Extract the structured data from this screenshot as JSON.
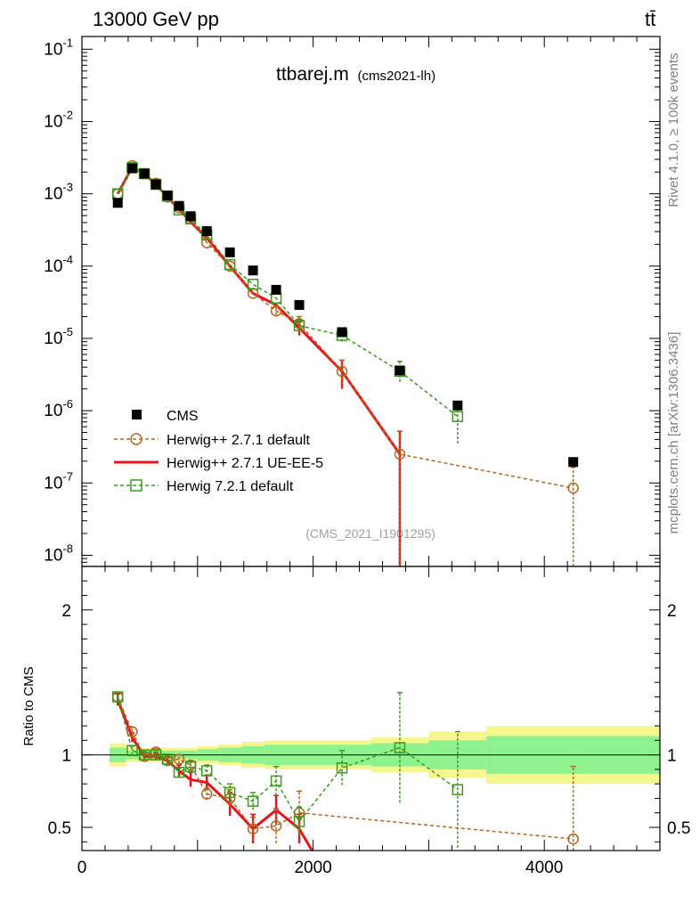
{
  "header": {
    "left_title": "13000 GeV pp",
    "right_title": "tt̄"
  },
  "plot_title": {
    "main": "ttbarej.m",
    "sub": "(cms2021-lh)"
  },
  "side_label_top": "Rivet 4.1.0, ≥ 100k events",
  "side_label_bottom": "mcplots.cern.ch [arXiv:1306.3436]",
  "watermark": "(CMS_2021_I1901295)",
  "ratio_ylabel": "Ratio to CMS",
  "colors": {
    "cms": "#000000",
    "h271": "#b5651d",
    "ueee5": "#e8141b",
    "h721": "#3a9a1a",
    "band_inner": "#8ef28e",
    "band_outer": "#f6f68e"
  },
  "chart_data": [
    {
      "type": "scatter",
      "panel": "main",
      "yscale": "log",
      "xlim": [
        0,
        5000
      ],
      "ylim": [
        7e-09,
        0.15
      ],
      "ytick_labels": [
        "10^-8",
        "10^-7",
        "10^-6",
        "10^-5",
        "10^-4",
        "10^-3",
        "10^-2",
        "10^-1"
      ],
      "legend": [
        {
          "key": "cms",
          "label": "CMS"
        },
        {
          "key": "h271",
          "label": "Herwig++ 2.7.1 default"
        },
        {
          "key": "ueee5",
          "label": "Herwig++ 2.7.1 UE-EE-5"
        },
        {
          "key": "h721",
          "label": "Herwig 7.2.1 default"
        }
      ],
      "series": [
        {
          "name": "CMS",
          "key": "cms",
          "style": "square",
          "x": [
            310,
            435,
            540,
            640,
            740,
            840,
            940,
            1080,
            1280,
            1480,
            1680,
            1880,
            2250,
            2750,
            3250,
            4250
          ],
          "y": [
            0.00075,
            0.00225,
            0.0019,
            0.00135,
            0.00095,
            0.00068,
            0.00049,
            0.000305,
            0.000155,
            8.7e-05,
            4.7e-05,
            2.9e-05,
            1.22e-05,
            3.6e-06,
            1.18e-06,
            1.95e-07
          ]
        },
        {
          "name": "Herwig++ 2.7.1 default",
          "key": "h271",
          "style": "circle-dashed",
          "x": [
            310,
            435,
            540,
            640,
            740,
            840,
            940,
            1080,
            1280,
            1480,
            1680,
            1880,
            2250,
            2750,
            4250
          ],
          "y": [
            0.001,
            0.00245,
            0.0019,
            0.0014,
            0.0009,
            0.00064,
            0.00045,
            0.00021,
            0.0001,
            4.2e-05,
            2.4e-05,
            1.6e-05,
            3.5e-06,
            2.5e-07,
            8.5e-08
          ],
          "yerr_lo": [
            0,
            0,
            0,
            0,
            0,
            0,
            0,
            0,
            0,
            0,
            3e-06,
            4e-06,
            1.5e-06,
            2.5e-07,
            8.5e-08
          ],
          "yerr_hi": [
            0,
            0,
            0,
            0,
            0,
            0,
            0,
            0,
            0,
            0,
            3e-06,
            4e-06,
            1.5e-06,
            2.7e-07,
            8e-08
          ]
        },
        {
          "name": "Herwig++ 2.7.1 UE-EE-5",
          "key": "ueee5",
          "style": "line-solid",
          "x": [
            310,
            435,
            540,
            640,
            740,
            840,
            940,
            1080,
            1280,
            1480,
            1680,
            1880,
            2250,
            2750
          ],
          "y": [
            0.001,
            0.00235,
            0.0019,
            0.00135,
            0.0009,
            0.00061,
            0.00041,
            0.000245,
            0.0001,
            4.2e-05,
            2.9e-05,
            1.4e-05,
            3.5e-06,
            2.5e-07
          ],
          "yerr_lo": [
            0,
            0,
            0,
            0,
            0,
            0,
            0,
            0,
            0,
            0,
            0,
            3e-06,
            1.5e-06,
            2.5e-07
          ],
          "yerr_hi": [
            0,
            0,
            0,
            0,
            0,
            0,
            0,
            0,
            0,
            0,
            0,
            3e-06,
            1.5e-06,
            2.7e-07
          ]
        },
        {
          "name": "Herwig 7.2.1 default",
          "key": "h721",
          "style": "square-dashed",
          "x": [
            310,
            435,
            540,
            640,
            740,
            840,
            940,
            1080,
            1280,
            1480,
            1680,
            1880,
            2250,
            2750,
            3250
          ],
          "y": [
            0.001,
            0.0023,
            0.0019,
            0.00135,
            0.00093,
            0.0006,
            0.00045,
            0.00027,
            0.000105,
            5.6e-05,
            3.6e-05,
            1.5e-05,
            1.1e-05,
            3.5e-06,
            8.3e-07
          ],
          "yerr_lo": [
            0,
            0,
            0,
            0,
            0,
            0,
            0,
            0,
            0,
            0,
            0,
            3e-06,
            2e-06,
            1e-06,
            4.8e-07
          ],
          "yerr_hi": [
            0,
            0,
            0,
            0,
            0,
            0,
            0,
            0,
            0,
            0,
            0,
            3e-06,
            2e-06,
            1.3e-06,
            4e-07
          ]
        }
      ]
    },
    {
      "type": "scatter",
      "panel": "ratio",
      "ylabel": "Ratio to CMS",
      "xlim": [
        0,
        5000
      ],
      "ylim": [
        0.34,
        2.3
      ],
      "ytick_labels": [
        "0.5",
        "1",
        "2"
      ],
      "xtick_labels": [
        "0",
        "2000",
        "4000"
      ],
      "bands": {
        "x_edges": [
          240,
          380,
          490,
          590,
          690,
          790,
          890,
          1000,
          1180,
          1380,
          1580,
          1780,
          1980,
          2500,
          3000,
          3500,
          5000
        ],
        "inner": [
          0.05,
          0.03,
          0.03,
          0.03,
          0.03,
          0.03,
          0.03,
          0.04,
          0.05,
          0.06,
          0.07,
          0.07,
          0.07,
          0.08,
          0.1,
          0.13
        ],
        "outer": [
          0.08,
          0.05,
          0.05,
          0.05,
          0.05,
          0.05,
          0.05,
          0.06,
          0.07,
          0.09,
          0.1,
          0.1,
          0.1,
          0.12,
          0.16,
          0.2
        ]
      },
      "series": [
        {
          "name": "Herwig++ 2.7.1 default",
          "key": "h271",
          "style": "circle-dashed",
          "x": [
            310,
            435,
            540,
            640,
            740,
            840,
            940,
            1080,
            1280,
            1480,
            1680,
            1880,
            4250
          ],
          "y": [
            1.4,
            1.16,
            0.99,
            1.02,
            0.96,
            0.97,
            0.93,
            0.73,
            0.7,
            0.49,
            0.51,
            0.6,
            0.42
          ],
          "yerr": [
            0.03,
            0.03,
            0.02,
            0.02,
            0.02,
            0.03,
            0.03,
            0.04,
            0.06,
            0.08,
            0.12,
            0.15,
            0.5
          ]
        },
        {
          "name": "Herwig++ 2.7.1 UE-EE-5",
          "key": "ueee5",
          "style": "line-solid",
          "x": [
            310,
            435,
            540,
            640,
            740,
            840,
            940,
            1080,
            1280,
            1480,
            1680,
            1880,
            2020
          ],
          "y": [
            1.38,
            1.12,
            0.99,
            0.99,
            0.96,
            0.89,
            0.83,
            0.81,
            0.66,
            0.49,
            0.62,
            0.49,
            0.3
          ],
          "yerr": [
            0.04,
            0.03,
            0.02,
            0.02,
            0.02,
            0.04,
            0.05,
            0.05,
            0.08,
            0.1,
            0.1,
            0.1,
            0
          ]
        },
        {
          "name": "Herwig 7.2.1 default",
          "key": "h721",
          "style": "square-dashed",
          "x": [
            310,
            435,
            540,
            640,
            740,
            840,
            940,
            1080,
            1280,
            1480,
            1680,
            1880,
            2250,
            2750,
            3250
          ],
          "y": [
            1.4,
            1.03,
            1.0,
            1.0,
            0.97,
            0.88,
            0.92,
            0.89,
            0.74,
            0.68,
            0.82,
            0.54,
            0.91,
            1.05,
            0.76
          ],
          "yerr": [
            0.03,
            0.03,
            0.02,
            0.02,
            0.02,
            0.03,
            0.03,
            0.04,
            0.06,
            0.06,
            0.1,
            0.1,
            0.12,
            0.38,
            0.4
          ]
        }
      ]
    }
  ]
}
